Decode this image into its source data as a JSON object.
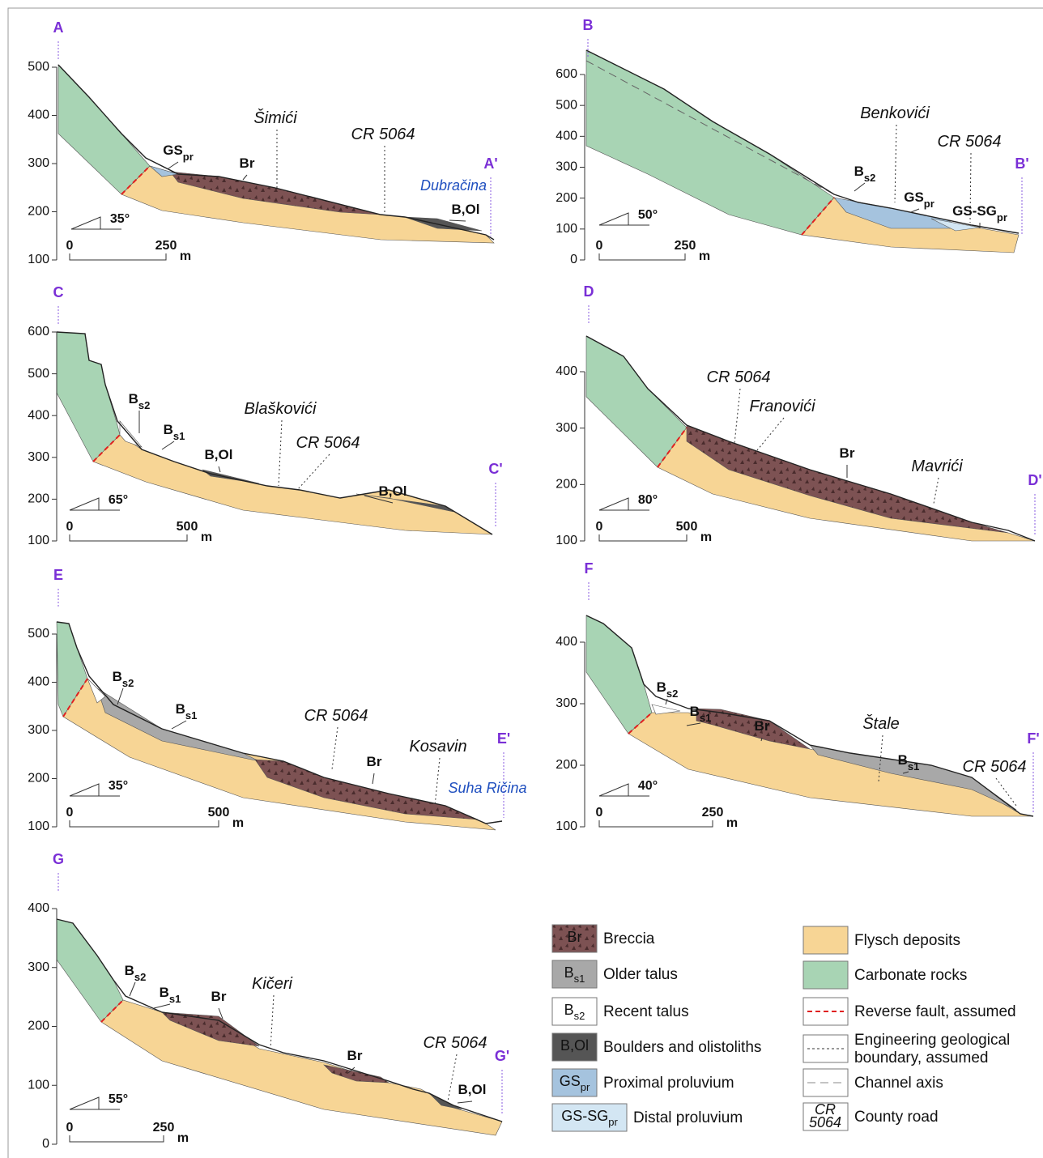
{
  "panels": [
    {
      "start": "A",
      "end": "A'",
      "ylim": [
        100,
        500
      ],
      "yticks": [
        100,
        200,
        300,
        400,
        500
      ],
      "slope": "35°",
      "scale": {
        "zero": 0,
        "length": 250,
        "unit": "m"
      },
      "labels": [
        {
          "text": "Šimići",
          "style": "place"
        },
        {
          "text": "CR 5064",
          "style": "place"
        },
        {
          "text": "Dubračina",
          "style": "water"
        },
        {
          "text": "GS",
          "sub": "pr",
          "style": "unit"
        },
        {
          "text": "Br",
          "style": "unit"
        },
        {
          "text": "B,Ol",
          "style": "unit"
        }
      ]
    },
    {
      "start": "B",
      "end": "B'",
      "ylim": [
        0,
        600
      ],
      "yticks": [
        0,
        100,
        200,
        300,
        400,
        500,
        600
      ],
      "slope": "50°",
      "scale": {
        "zero": 0,
        "length": 250,
        "unit": "m"
      },
      "labels": [
        {
          "text": "Benkovići",
          "style": "place"
        },
        {
          "text": "CR 5064",
          "style": "place"
        },
        {
          "text": "B",
          "sub": "s2",
          "style": "unit"
        },
        {
          "text": "GS",
          "sub": "pr",
          "style": "unit"
        },
        {
          "text": "GS-SG",
          "sub": "pr",
          "style": "unit"
        }
      ]
    },
    {
      "start": "C",
      "end": "C'",
      "ylim": [
        100,
        600
      ],
      "yticks": [
        100,
        200,
        300,
        400,
        500,
        600
      ],
      "slope": "65°",
      "scale": {
        "zero": 0,
        "length": 500,
        "unit": "m"
      },
      "labels": [
        {
          "text": "Blaškovići",
          "style": "place"
        },
        {
          "text": "CR 5064",
          "style": "place"
        },
        {
          "text": "B",
          "sub": "s2",
          "style": "unit"
        },
        {
          "text": "B",
          "sub": "s1",
          "style": "unit"
        },
        {
          "text": "B,Ol",
          "style": "unit"
        },
        {
          "text": "B,Ol",
          "style": "unit"
        }
      ]
    },
    {
      "start": "D",
      "end": "D'",
      "ylim": [
        100,
        400
      ],
      "yticks": [
        100,
        200,
        300,
        400
      ],
      "slope": "80°",
      "scale": {
        "zero": 0,
        "length": 500,
        "unit": "m"
      },
      "labels": [
        {
          "text": "CR 5064",
          "style": "place"
        },
        {
          "text": "Franovići",
          "style": "place"
        },
        {
          "text": "Br",
          "style": "unit"
        },
        {
          "text": "Mavrići",
          "style": "place"
        }
      ]
    },
    {
      "start": "E",
      "end": "E'",
      "ylim": [
        100,
        500
      ],
      "yticks": [
        100,
        200,
        300,
        400,
        500
      ],
      "slope": "35°",
      "scale": {
        "zero": 0,
        "length": 500,
        "unit": "m"
      },
      "labels": [
        {
          "text": "CR 5064",
          "style": "place"
        },
        {
          "text": "Kosavin",
          "style": "place"
        },
        {
          "text": "Br",
          "style": "unit"
        },
        {
          "text": "Suha Ričina",
          "style": "water"
        },
        {
          "text": "B",
          "sub": "s2",
          "style": "unit"
        },
        {
          "text": "B",
          "sub": "s1",
          "style": "unit"
        }
      ]
    },
    {
      "start": "F",
      "end": "F'",
      "ylim": [
        100,
        400
      ],
      "yticks": [
        100,
        200,
        300,
        400
      ],
      "slope": "40°",
      "scale": {
        "zero": 0,
        "length": 250,
        "unit": "m"
      },
      "labels": [
        {
          "text": "Štale",
          "style": "place"
        },
        {
          "text": "CR 5064",
          "style": "place"
        },
        {
          "text": "Br",
          "style": "unit"
        },
        {
          "text": "B",
          "sub": "s2",
          "style": "unit"
        },
        {
          "text": "B",
          "sub": "s1",
          "style": "unit"
        },
        {
          "text": "B",
          "sub": "s1",
          "style": "unit"
        }
      ]
    },
    {
      "start": "G",
      "end": "G'",
      "ylim": [
        0,
        400
      ],
      "yticks": [
        0,
        100,
        200,
        300,
        400
      ],
      "slope": "55°",
      "scale": {
        "zero": 0,
        "length": 250,
        "unit": "m"
      },
      "labels": [
        {
          "text": "Kičeri",
          "style": "place"
        },
        {
          "text": "CR 5064",
          "style": "place"
        },
        {
          "text": "B",
          "sub": "s2",
          "style": "unit"
        },
        {
          "text": "B",
          "sub": "s1",
          "style": "unit"
        },
        {
          "text": "Br",
          "style": "unit"
        },
        {
          "text": "Br",
          "style": "unit"
        },
        {
          "text": "B,Ol",
          "style": "unit"
        }
      ]
    }
  ],
  "legend": {
    "left": [
      {
        "symbol": {
          "text": "Br"
        },
        "label": "Breccia"
      },
      {
        "symbol": {
          "text": "B",
          "sub": "s1"
        },
        "label": "Older talus"
      },
      {
        "symbol": {
          "text": "B",
          "sub": "s2"
        },
        "label": "Recent talus"
      },
      {
        "symbol": {
          "text": "B,Ol"
        },
        "label": "Boulders and olistoliths"
      },
      {
        "symbol": {
          "text": "GS",
          "sub": "pr"
        },
        "label": "Proximal proluvium"
      },
      {
        "symbol": {
          "text": "GS-SG",
          "sub": "pr"
        },
        "label": "Distal proluvium"
      }
    ],
    "right": [
      {
        "label": [
          "Flysch deposits"
        ]
      },
      {
        "label": [
          "Carbonate rocks"
        ]
      },
      {
        "label": [
          "Reverse fault, assumed"
        ]
      },
      {
        "label": [
          "Engineering geological",
          "boundary, assumed"
        ]
      },
      {
        "label": [
          "Channel axis"
        ]
      },
      {
        "symbol": [
          "CR",
          "5064"
        ],
        "label": [
          "County road"
        ]
      }
    ]
  }
}
